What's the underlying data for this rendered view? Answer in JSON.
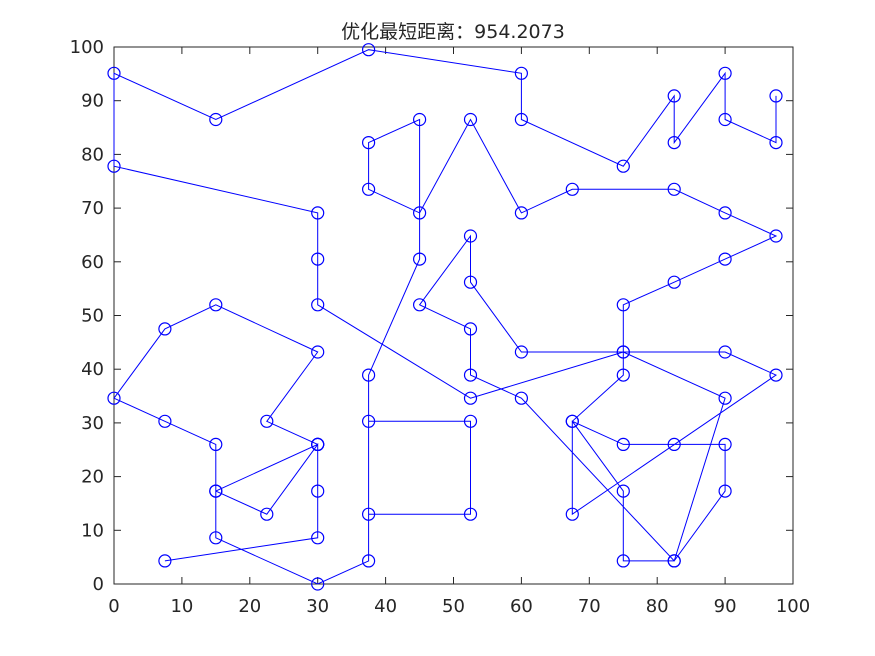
{
  "chart_data": {
    "type": "line",
    "title": "优化最短距离：954.2073",
    "xlabel": "",
    "ylabel": "",
    "xlim": [
      0,
      100
    ],
    "ylim": [
      0,
      100
    ],
    "xticks": [
      "0",
      "10",
      "20",
      "30",
      "40",
      "50",
      "60",
      "70",
      "80",
      "90",
      "100"
    ],
    "yticks": [
      "0",
      "10",
      "20",
      "30",
      "40",
      "50",
      "60",
      "70",
      "80",
      "90",
      "100"
    ],
    "grid": false,
    "legend": "none",
    "color": "#0000ff",
    "series": [
      {
        "x": [
          97.5,
          97.5,
          90,
          90,
          82.5,
          82.5,
          75,
          60,
          60,
          37.5,
          15,
          0,
          0,
          30,
          30,
          30,
          52.5,
          75,
          90,
          97.5,
          67.5,
          67.5,
          75,
          82.5,
          90,
          90,
          82.5,
          60,
          52.5,
          52.5,
          45,
          52.5,
          52.5,
          60,
          75,
          90,
          82.5,
          75,
          75,
          67.5,
          75,
          75,
          82.5,
          90,
          97.5,
          90,
          82.5,
          67.5,
          60,
          52.5,
          45,
          37.5,
          37.5,
          45,
          45,
          37.5,
          37.5,
          52.5,
          52.5,
          37.5,
          37.5,
          30,
          15,
          15,
          30,
          30,
          30,
          22.5,
          15,
          15,
          7.5,
          0,
          7.5,
          15,
          30,
          22.5,
          30,
          30,
          7.5
        ],
        "y": [
          90.9,
          82.2,
          86.5,
          95.1,
          82.2,
          90.9,
          77.8,
          86.5,
          95.1,
          99.5,
          86.5,
          95.1,
          77.8,
          69.1,
          60.5,
          52,
          34.6,
          43.2,
          43.2,
          38.9,
          13,
          30.3,
          26,
          26,
          26,
          17.3,
          4.3,
          34.6,
          38.9,
          47.5,
          52,
          64.8,
          56.2,
          43.2,
          43.2,
          34.6,
          4.3,
          4.3,
          17.3,
          30.3,
          38.9,
          52,
          56.2,
          60.5,
          64.8,
          69.1,
          73.5,
          73.5,
          69.1,
          86.5,
          69.1,
          73.5,
          82.2,
          86.5,
          60.5,
          38.9,
          13,
          13,
          30.3,
          30.3,
          4.3,
          0,
          8.6,
          17.3,
          26,
          17.3,
          26,
          13,
          17.3,
          26,
          30.3,
          34.6,
          47.5,
          52,
          43.2,
          30.3,
          26,
          8.6,
          4.3
        ]
      }
    ]
  }
}
